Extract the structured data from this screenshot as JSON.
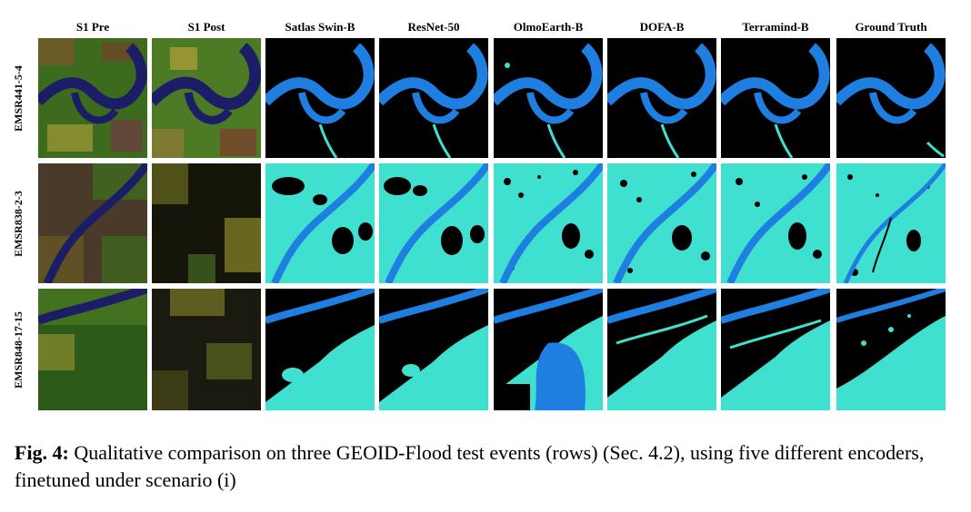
{
  "figure": {
    "columns": [
      "S1 Pre",
      "S1 Post",
      "Satlas Swin-B",
      "ResNet-50",
      "OlmoEarth-B",
      "DOFA-B",
      "Terramind-B",
      "Ground Truth"
    ],
    "rows": [
      "EMSR441-5-4",
      "EMSR838-2-3",
      "EMSR848-17-15"
    ],
    "colors": {
      "background": "#000000",
      "permanent_water": "#1f7fe0",
      "flood": "#40e0d0",
      "sar_water": "#1b1e66",
      "sar_green": "#3d6b1e",
      "sar_yellow": "#b5a13a",
      "sar_red": "#8a3030"
    }
  },
  "caption": {
    "label": "Fig. 4:",
    "text": "Qualitative comparison on three GEOID-Flood test events (rows) (Sec. 4.2), using five different encoders, finetuned under scenario (i)"
  }
}
